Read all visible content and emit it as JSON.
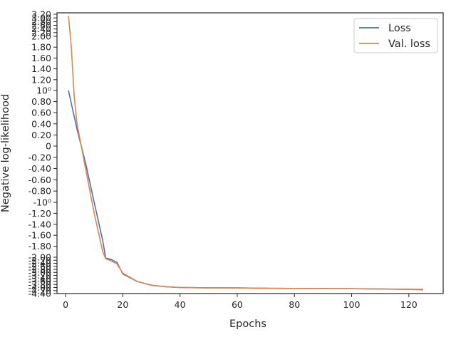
{
  "chart_data": {
    "type": "line",
    "xlabel": "Epochs",
    "ylabel": "Negative log-likelihood",
    "xlim": [
      -3,
      132
    ],
    "x_ticks": [
      0,
      20,
      40,
      60,
      80,
      100,
      120
    ],
    "y_scale": "symlog",
    "y_ticks": [
      "3.20",
      "3.00",
      "2.80",
      "2.60",
      "2.40",
      "2.20",
      "2.00",
      "1.80",
      "1.60",
      "1.40",
      "1.20",
      "10⁰",
      "0.80",
      "0.60",
      "0.40",
      "0.20",
      "0",
      "-0.20",
      "-0.40",
      "-0.60",
      "-0.80",
      "-10⁰",
      "-1.20",
      "-1.40",
      "-1.60",
      "-1.80",
      "-2.00",
      "-2.20",
      "-2.40",
      "-2.60",
      "-2.80",
      "-3.00",
      "-3.20",
      "-3.40",
      "-3.60",
      "-3.80",
      "-4.00",
      "-4.20",
      "-4.40"
    ],
    "legend": {
      "location": "top-right",
      "entries": [
        "Loss",
        "Val. loss"
      ]
    },
    "grid": false,
    "series": [
      {
        "name": "Loss",
        "color": "#4c72b0",
        "x": [
          1,
          4,
          7,
          10,
          13,
          14,
          16,
          18,
          20,
          25,
          30,
          35,
          40,
          50,
          60,
          70,
          80,
          90,
          100,
          110,
          120,
          125
        ],
        "y": [
          1.0,
          0.3,
          -0.3,
          -1.0,
          -1.7,
          -2.05,
          -2.15,
          -2.35,
          -3.1,
          -3.6,
          -3.85,
          -3.95,
          -4.0,
          -4.02,
          -4.03,
          -4.05,
          -4.06,
          -4.07,
          -4.08,
          -4.1,
          -4.12,
          -4.15
        ]
      },
      {
        "name": "Val. loss",
        "color": "#dd8452",
        "x": [
          1,
          2,
          3,
          4,
          7,
          10,
          13,
          14,
          16,
          18,
          20,
          25,
          30,
          35,
          40,
          50,
          60,
          70,
          80,
          90,
          100,
          110,
          120,
          125
        ],
        "y": [
          3.1,
          1.8,
          0.9,
          0.4,
          -0.4,
          -1.2,
          -1.9,
          -2.1,
          -2.25,
          -2.45,
          -3.05,
          -3.6,
          -3.85,
          -3.95,
          -4.0,
          -4.02,
          -4.03,
          -4.05,
          -4.06,
          -4.07,
          -4.08,
          -4.1,
          -4.12,
          -4.12
        ]
      }
    ]
  }
}
